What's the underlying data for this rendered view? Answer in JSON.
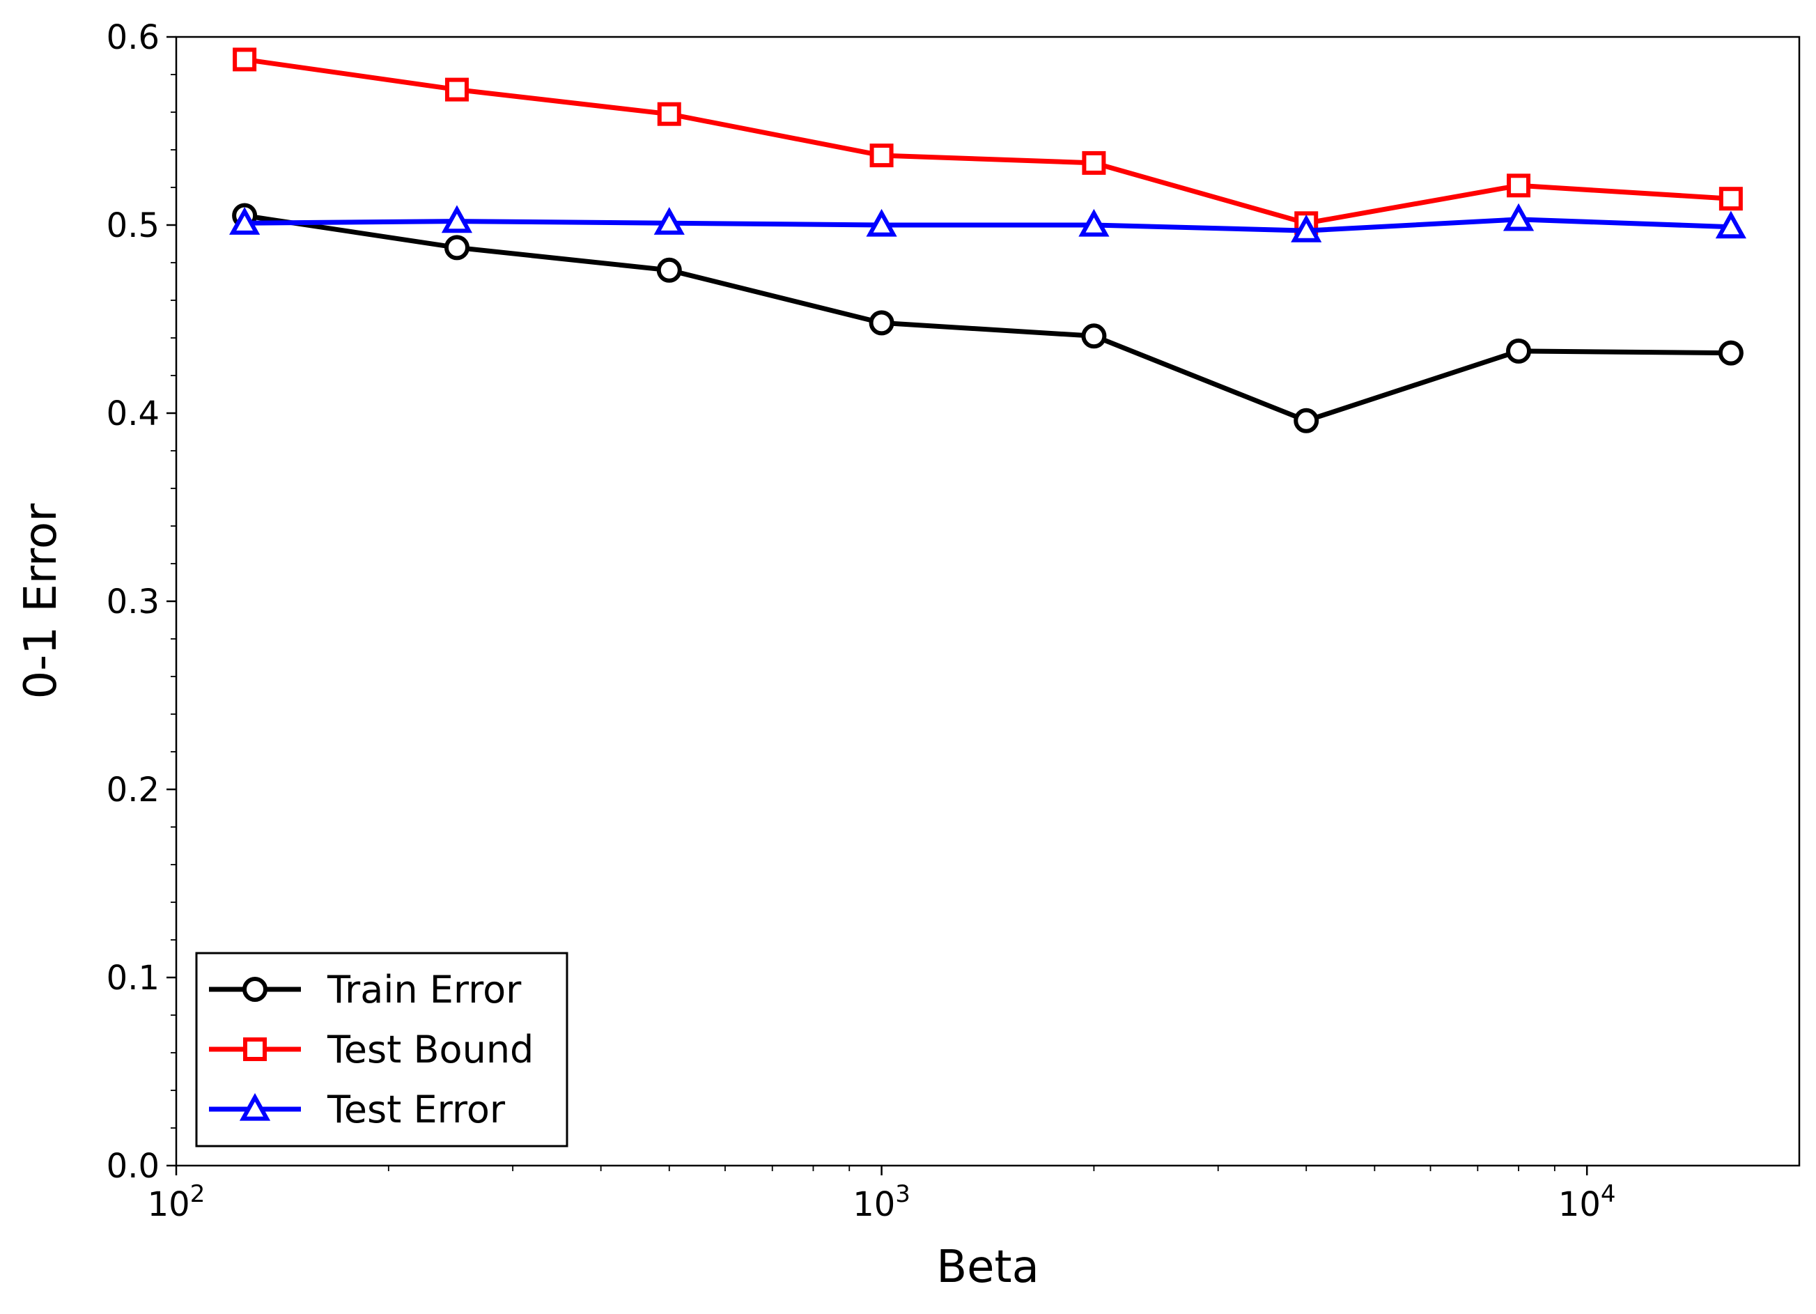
{
  "chart_data": {
    "type": "line",
    "xlabel": "Beta",
    "ylabel": "0-1 Error",
    "x_scale": "log",
    "xlim": [
      100,
      20000
    ],
    "ylim": [
      0.0,
      0.6
    ],
    "grid": false,
    "legend_position": "lower-left",
    "x": [
      125,
      250,
      500,
      1000,
      2000,
      4000,
      8000,
      16000
    ],
    "x_ticks": [
      {
        "value": 100,
        "base": "10",
        "exp": "2"
      },
      {
        "value": 1000,
        "base": "10",
        "exp": "3"
      },
      {
        "value": 10000,
        "base": "10",
        "exp": "4"
      }
    ],
    "y_ticks": [
      "0.0",
      "0.1",
      "0.2",
      "0.3",
      "0.4",
      "0.5",
      "0.6"
    ],
    "series": [
      {
        "name": "Train Error",
        "color": "#000000",
        "marker": "circle",
        "values": [
          0.505,
          0.488,
          0.476,
          0.448,
          0.441,
          0.396,
          0.433,
          0.432
        ]
      },
      {
        "name": "Test Bound",
        "color": "#ff0000",
        "marker": "square",
        "values": [
          0.588,
          0.572,
          0.559,
          0.537,
          0.533,
          0.501,
          0.521,
          0.514
        ]
      },
      {
        "name": "Test Error",
        "color": "#0000ff",
        "marker": "triangle",
        "values": [
          0.501,
          0.502,
          0.501,
          0.5,
          0.5,
          0.497,
          0.503,
          0.499
        ]
      }
    ]
  }
}
